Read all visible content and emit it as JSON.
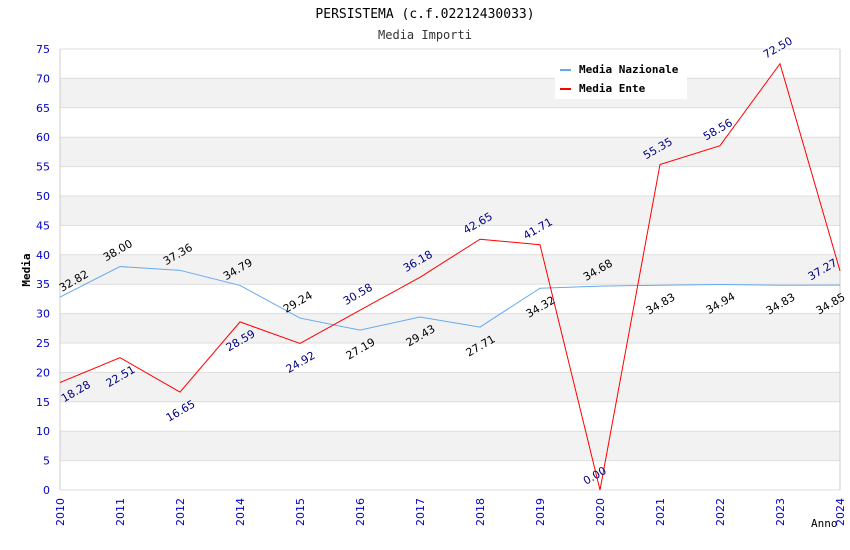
{
  "chart_data": {
    "type": "line",
    "title": "PERSISTEMA (c.f.02212430033)",
    "subtitle": "Media Importi",
    "xlabel": "Anno",
    "ylabel": "Media",
    "ylim": [
      0,
      75
    ],
    "yticks": [
      0,
      5,
      10,
      15,
      20,
      25,
      30,
      35,
      40,
      45,
      50,
      55,
      60,
      65,
      70,
      75
    ],
    "categories": [
      "2010",
      "2011",
      "2012",
      "2014",
      "2015",
      "2016",
      "2017",
      "2018",
      "2019",
      "2020",
      "2021",
      "2022",
      "2023",
      "2024"
    ],
    "series": [
      {
        "name": "Media Nazionale",
        "color": "#66aaee",
        "label_color": "#000000",
        "values": [
          32.82,
          38.0,
          37.36,
          34.79,
          29.24,
          27.19,
          29.43,
          27.71,
          34.32,
          34.68,
          34.83,
          34.94,
          34.83,
          34.85
        ]
      },
      {
        "name": "Media Ente",
        "color": "#ff0000",
        "label_color": "#000080",
        "values": [
          18.28,
          22.51,
          16.65,
          28.59,
          24.92,
          30.58,
          36.18,
          42.65,
          41.71,
          0.0,
          55.35,
          58.56,
          72.5,
          37.27
        ]
      }
    ],
    "grid": true,
    "legend": "top-right"
  }
}
